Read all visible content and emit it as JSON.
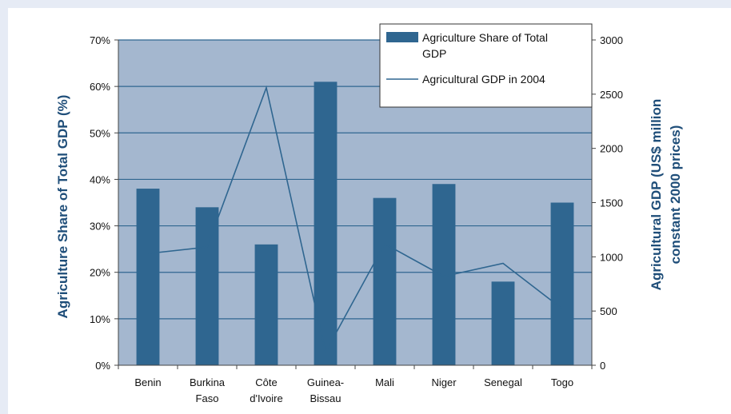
{
  "colors": {
    "plot_background": "#a4b7cf",
    "bar": "#2f6690",
    "line": "#2f6690",
    "axis_title": "#1f4e79",
    "gridline": "#2f6690"
  },
  "chart_data": {
    "type": "bar",
    "categories": [
      "Benin",
      "Burkina\nFaso",
      "Côte\nd'Ivoire",
      "Guinea-\nBissau",
      "Mali",
      "Niger",
      "Senegal",
      "Togo"
    ],
    "series": [
      {
        "name": "Agriculture Share of Total GDP",
        "type": "bar",
        "axis": "left",
        "values": [
          38,
          34,
          26,
          61,
          36,
          39,
          18,
          35
        ]
      },
      {
        "name": "Agricultural GDP in 2004",
        "type": "line",
        "axis": "right",
        "values": [
          1030,
          1090,
          2560,
          120,
          1120,
          820,
          940,
          520
        ]
      }
    ],
    "ylabel": "Agriculture Share of Total GDP (%)",
    "y2label": "Agricultural GDP (US$ million constant 2000 prices)",
    "ylim": [
      0,
      70
    ],
    "y2lim": [
      0,
      3000
    ],
    "yticks": [
      "0%",
      "10%",
      "20%",
      "30%",
      "40%",
      "50%",
      "60%",
      "70%"
    ],
    "y2ticks": [
      "0",
      "500",
      "1000",
      "1500",
      "2000",
      "2500",
      "3000"
    ],
    "grid": true,
    "legend_position": "top-right"
  }
}
